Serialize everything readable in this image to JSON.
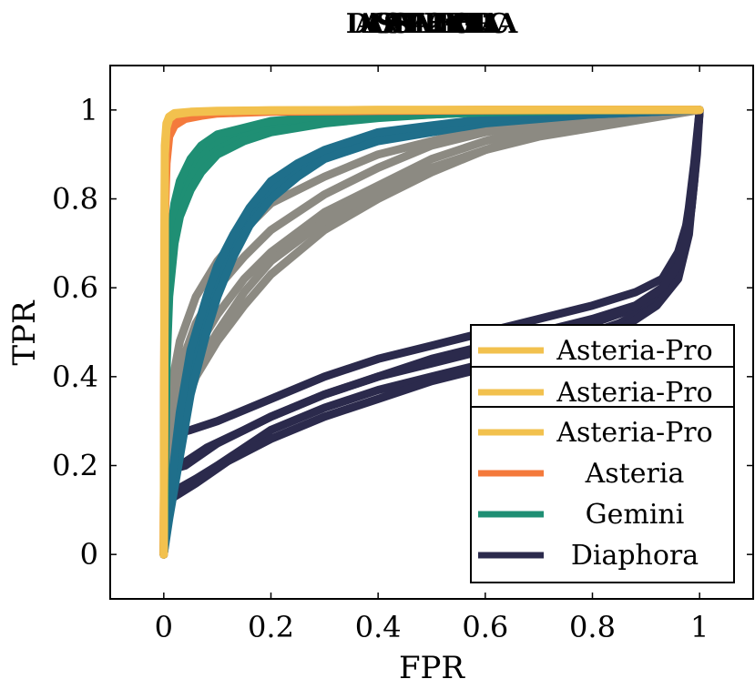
{
  "chart_data": {
    "type": "line",
    "title_overlaps": [
      "ASTERIA",
      "ASTERIA",
      "GEMINI",
      "DIAPHORA",
      "SAFE",
      "ASM2VEC"
    ],
    "xlabel": "FPR",
    "ylabel": "TPR",
    "xlim": [
      -0.1,
      1.1
    ],
    "ylim": [
      -0.1,
      1.1
    ],
    "xticks": [
      0,
      0.2,
      0.4,
      0.6,
      0.8,
      1
    ],
    "yticks": [
      0,
      0.2,
      0.4,
      0.6,
      0.8,
      1
    ],
    "xtick_labels": [
      "0",
      "0.2",
      "0.4",
      "0.6",
      "0.8",
      "1"
    ],
    "ytick_labels": [
      "0",
      "0.2",
      "0.4",
      "0.6",
      "0.8",
      "1"
    ],
    "grid": false,
    "legend_placement": "bottom-right",
    "series": [
      {
        "name": "Diaphora",
        "color": "#2b2a4c",
        "x": [
          0,
          0.01,
          0.03,
          0.06,
          0.1,
          0.15,
          0.2,
          0.3,
          0.4,
          0.5,
          0.6,
          0.7,
          0.8,
          0.85,
          0.9,
          0.93,
          0.95,
          0.97,
          0.98,
          0.99,
          1
        ],
        "y": [
          0,
          0.14,
          0.15,
          0.17,
          0.2,
          0.24,
          0.28,
          0.33,
          0.37,
          0.4,
          0.43,
          0.46,
          0.5,
          0.52,
          0.55,
          0.58,
          0.62,
          0.7,
          0.78,
          0.88,
          1
        ]
      },
      {
        "name": "Diaphora",
        "color": "#2b2a4c",
        "x": [
          0,
          0.01,
          0.03,
          0.08,
          0.15,
          0.2,
          0.3,
          0.4,
          0.5,
          0.6,
          0.7,
          0.8,
          0.87,
          0.92,
          0.95,
          0.97,
          0.985,
          0.995,
          1
        ],
        "y": [
          0,
          0.18,
          0.2,
          0.24,
          0.28,
          0.31,
          0.36,
          0.4,
          0.43,
          0.46,
          0.49,
          0.52,
          0.55,
          0.58,
          0.62,
          0.68,
          0.78,
          0.9,
          1
        ]
      },
      {
        "name": "Diaphora",
        "color": "#2b2a4c",
        "x": [
          0,
          0.02,
          0.05,
          0.1,
          0.2,
          0.3,
          0.4,
          0.5,
          0.6,
          0.7,
          0.8,
          0.88,
          0.93,
          0.96,
          0.98,
          0.99,
          1
        ],
        "y": [
          0,
          0.27,
          0.28,
          0.3,
          0.35,
          0.4,
          0.44,
          0.47,
          0.5,
          0.53,
          0.56,
          0.59,
          0.62,
          0.68,
          0.76,
          0.86,
          1
        ]
      },
      {
        "name": "Diaphora",
        "color": "#2b2a4c",
        "x": [
          0,
          0.01,
          0.02,
          0.06,
          0.12,
          0.2,
          0.3,
          0.4,
          0.5,
          0.6,
          0.7,
          0.8,
          0.87,
          0.92,
          0.96,
          0.98,
          0.99,
          1
        ],
        "y": [
          0,
          0.12,
          0.13,
          0.16,
          0.21,
          0.26,
          0.31,
          0.35,
          0.39,
          0.42,
          0.45,
          0.48,
          0.52,
          0.56,
          0.62,
          0.72,
          0.85,
          1
        ]
      },
      {
        "name": "Diaphora",
        "color": "#2b2a4c",
        "x": [
          0,
          0.01,
          0.04,
          0.1,
          0.2,
          0.3,
          0.4,
          0.5,
          0.6,
          0.7,
          0.8,
          0.88,
          0.93,
          0.96,
          0.98,
          0.99,
          1
        ],
        "y": [
          0,
          0.19,
          0.2,
          0.25,
          0.31,
          0.36,
          0.4,
          0.44,
          0.47,
          0.5,
          0.53,
          0.56,
          0.6,
          0.65,
          0.73,
          0.84,
          1
        ]
      },
      {
        "name": "Asteria-Pro",
        "color": "#8c8a82",
        "x": [
          0,
          0.01,
          0.03,
          0.06,
          0.1,
          0.15,
          0.2,
          0.3,
          0.4,
          0.5,
          0.6,
          0.7,
          0.8,
          0.9,
          1
        ],
        "y": [
          0,
          0.3,
          0.42,
          0.52,
          0.6,
          0.67,
          0.73,
          0.81,
          0.87,
          0.92,
          0.95,
          0.97,
          0.985,
          0.995,
          1
        ]
      },
      {
        "name": "Asteria-Pro",
        "color": "#8c8a82",
        "x": [
          0,
          0.01,
          0.03,
          0.06,
          0.1,
          0.15,
          0.2,
          0.3,
          0.4,
          0.5,
          0.6,
          0.7,
          0.8,
          0.9,
          1
        ],
        "y": [
          0,
          0.25,
          0.36,
          0.46,
          0.54,
          0.62,
          0.68,
          0.77,
          0.83,
          0.89,
          0.93,
          0.96,
          0.98,
          0.99,
          1
        ]
      },
      {
        "name": "Asteria-Pro",
        "color": "#8c8a82",
        "x": [
          0,
          0.01,
          0.03,
          0.06,
          0.1,
          0.15,
          0.2,
          0.3,
          0.4,
          0.5,
          0.6,
          0.7,
          0.8,
          0.9,
          1
        ],
        "y": [
          0,
          0.2,
          0.3,
          0.4,
          0.48,
          0.56,
          0.63,
          0.73,
          0.8,
          0.86,
          0.91,
          0.95,
          0.975,
          0.99,
          1
        ]
      },
      {
        "name": "Asteria-Pro",
        "color": "#8c8a82",
        "x": [
          0,
          0.01,
          0.03,
          0.06,
          0.1,
          0.15,
          0.2,
          0.3,
          0.4,
          0.5,
          0.6,
          0.7,
          0.8,
          0.9,
          1
        ],
        "y": [
          0,
          0.35,
          0.48,
          0.58,
          0.66,
          0.73,
          0.79,
          0.85,
          0.9,
          0.93,
          0.96,
          0.975,
          0.985,
          0.995,
          1
        ]
      },
      {
        "name": "Asteria-Pro",
        "color": "#8c8a82",
        "x": [
          0,
          0.01,
          0.03,
          0.06,
          0.1,
          0.15,
          0.2,
          0.3,
          0.4,
          0.5,
          0.6,
          0.7,
          0.8,
          0.9,
          1
        ],
        "y": [
          0,
          0.22,
          0.32,
          0.42,
          0.5,
          0.59,
          0.66,
          0.75,
          0.82,
          0.87,
          0.91,
          0.94,
          0.96,
          0.98,
          1
        ]
      },
      {
        "name": "Asteria-Pro",
        "color": "#1f6f8b",
        "x": [
          0,
          0.01,
          0.03,
          0.05,
          0.08,
          0.1,
          0.13,
          0.16,
          0.2,
          0.25,
          0.3,
          0.4,
          0.5,
          0.6,
          0.7,
          0.8,
          0.9,
          1
        ],
        "y": [
          0,
          0.1,
          0.28,
          0.42,
          0.55,
          0.62,
          0.7,
          0.76,
          0.82,
          0.87,
          0.9,
          0.94,
          0.96,
          0.975,
          0.985,
          0.99,
          0.995,
          1
        ]
      },
      {
        "name": "Asteria-Pro",
        "color": "#1f6f8b",
        "x": [
          0,
          0.01,
          0.03,
          0.05,
          0.08,
          0.1,
          0.13,
          0.16,
          0.2,
          0.25,
          0.3,
          0.4,
          0.5,
          0.6,
          0.7,
          0.8,
          0.9,
          1
        ],
        "y": [
          0,
          0.08,
          0.22,
          0.36,
          0.5,
          0.58,
          0.67,
          0.74,
          0.8,
          0.85,
          0.89,
          0.93,
          0.95,
          0.97,
          0.98,
          0.99,
          0.995,
          1
        ]
      },
      {
        "name": "Asteria-Pro",
        "color": "#1f6f8b",
        "x": [
          0,
          0.01,
          0.03,
          0.05,
          0.08,
          0.1,
          0.13,
          0.16,
          0.2,
          0.25,
          0.3,
          0.4,
          0.5,
          0.6,
          0.7,
          0.8,
          0.9,
          1
        ],
        "y": [
          0,
          0.12,
          0.32,
          0.46,
          0.58,
          0.65,
          0.72,
          0.78,
          0.84,
          0.88,
          0.91,
          0.95,
          0.965,
          0.98,
          0.99,
          0.995,
          0.998,
          1
        ]
      },
      {
        "name": "Gemini",
        "color": "#1f8f74",
        "x": [
          0,
          0.005,
          0.01,
          0.02,
          0.03,
          0.05,
          0.07,
          0.1,
          0.15,
          0.2,
          0.3,
          0.4,
          0.5,
          0.6,
          0.8,
          1
        ],
        "y": [
          0,
          0.5,
          0.65,
          0.75,
          0.8,
          0.86,
          0.9,
          0.93,
          0.95,
          0.965,
          0.98,
          0.99,
          0.995,
          0.998,
          0.999,
          1
        ]
      },
      {
        "name": "Gemini",
        "color": "#1f8f74",
        "x": [
          0,
          0.005,
          0.01,
          0.02,
          0.03,
          0.05,
          0.07,
          0.1,
          0.15,
          0.2,
          0.3,
          0.4,
          0.5,
          0.6,
          0.8,
          1
        ],
        "y": [
          0,
          0.45,
          0.6,
          0.72,
          0.78,
          0.84,
          0.88,
          0.91,
          0.94,
          0.955,
          0.975,
          0.985,
          0.99,
          0.995,
          0.999,
          1
        ]
      },
      {
        "name": "Gemini",
        "color": "#1f8f74",
        "x": [
          0,
          0.005,
          0.01,
          0.02,
          0.03,
          0.05,
          0.07,
          0.1,
          0.15,
          0.2,
          0.3,
          0.4,
          0.5,
          0.6,
          0.8,
          1
        ],
        "y": [
          0,
          0.55,
          0.7,
          0.79,
          0.84,
          0.89,
          0.92,
          0.945,
          0.96,
          0.975,
          0.985,
          0.992,
          0.996,
          0.998,
          0.999,
          1
        ]
      },
      {
        "name": "Gemini",
        "color": "#1f8f74",
        "x": [
          0,
          0.005,
          0.01,
          0.02,
          0.03,
          0.05,
          0.07,
          0.1,
          0.15,
          0.2,
          0.3,
          0.4,
          0.5,
          0.6,
          0.8,
          1
        ],
        "y": [
          0,
          0.42,
          0.58,
          0.7,
          0.76,
          0.82,
          0.86,
          0.9,
          0.93,
          0.95,
          0.97,
          0.982,
          0.99,
          0.995,
          0.999,
          1
        ]
      },
      {
        "name": "Asteria",
        "color": "#f47a3c",
        "x": [
          0,
          0.002,
          0.005,
          0.01,
          0.02,
          0.04,
          0.07,
          0.1,
          0.2,
          0.4,
          0.6,
          0.8,
          1
        ],
        "y": [
          0,
          0.8,
          0.92,
          0.96,
          0.975,
          0.985,
          0.99,
          0.994,
          0.997,
          0.999,
          1,
          1,
          1
        ]
      },
      {
        "name": "Asteria",
        "color": "#f47a3c",
        "x": [
          0,
          0.002,
          0.005,
          0.01,
          0.02,
          0.04,
          0.07,
          0.1,
          0.2,
          0.4,
          0.6,
          0.8,
          1
        ],
        "y": [
          0,
          0.75,
          0.88,
          0.94,
          0.965,
          0.98,
          0.987,
          0.992,
          0.996,
          0.998,
          0.999,
          1,
          1
        ]
      },
      {
        "name": "Asteria",
        "color": "#f47a3c",
        "x": [
          0,
          0.002,
          0.005,
          0.01,
          0.02,
          0.04,
          0.07,
          0.1,
          0.2,
          0.4,
          0.6,
          0.8,
          1
        ],
        "y": [
          0,
          0.85,
          0.94,
          0.97,
          0.98,
          0.99,
          0.993,
          0.996,
          0.998,
          0.999,
          1,
          1,
          1
        ]
      },
      {
        "name": "Asteria-Pro",
        "color": "#f2c14e",
        "x": [
          0,
          0.002,
          0.005,
          0.01,
          0.02,
          0.05,
          0.1,
          0.2,
          0.4,
          0.6,
          0.8,
          1
        ],
        "y": [
          0,
          0.9,
          0.96,
          0.98,
          0.99,
          0.995,
          0.997,
          0.999,
          1,
          1,
          1,
          1
        ]
      },
      {
        "name": "Asteria-Pro",
        "color": "#f2c14e",
        "x": [
          0,
          0.002,
          0.005,
          0.01,
          0.02,
          0.05,
          0.1,
          0.2,
          0.4,
          0.6,
          0.8,
          1
        ],
        "y": [
          0,
          0.92,
          0.97,
          0.985,
          0.993,
          0.996,
          0.998,
          0.999,
          1,
          1,
          1,
          1
        ]
      }
    ],
    "legend_boxes": [
      {
        "entries": [
          {
            "label": "Asteria-Pro",
            "color": "#f2c14e"
          }
        ]
      },
      {
        "entries": [
          {
            "label": "Asteria-Pro",
            "color": "#f2c14e"
          }
        ]
      },
      {
        "entries": [
          {
            "label": "Asteria-Pro",
            "color": "#f2c14e"
          },
          {
            "label": "Asteria",
            "color": "#f47a3c"
          },
          {
            "label": "Gemini",
            "color": "#1f8f74"
          },
          {
            "label": "Diaphora",
            "color": "#2b2a4c"
          }
        ]
      }
    ]
  }
}
